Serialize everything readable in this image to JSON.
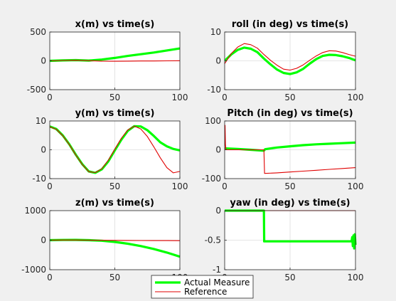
{
  "colors": {
    "actual": "#00ff00",
    "reference": "#e00000",
    "axes_bg": "#ffffff",
    "axes_line": "#262626",
    "grid": "#dcdcdc",
    "figure_bg": "#f0f0f0"
  },
  "legend": {
    "placement": "bottom-center",
    "items": [
      "Actual Measure",
      "Reference"
    ]
  },
  "chart_data": [
    {
      "type": "line",
      "title": "x(m) vs time(s)",
      "xlim": [
        0,
        100
      ],
      "ylim": [
        -500,
        500
      ],
      "grid": true,
      "xticks": [
        "0",
        "50",
        "100"
      ],
      "yticks": [
        "-500",
        "0",
        "500"
      ],
      "series": [
        {
          "name": "Actual Measure",
          "x": [
            0,
            10,
            20,
            30,
            40,
            50,
            60,
            70,
            80,
            90,
            100
          ],
          "y": [
            0,
            8,
            12,
            5,
            22,
            50,
            85,
            115,
            145,
            180,
            215
          ]
        },
        {
          "name": "Reference",
          "x": [
            0,
            10,
            20,
            30,
            40,
            50,
            60,
            70,
            80,
            90,
            100
          ],
          "y": [
            0,
            6,
            10,
            4,
            -5,
            -8,
            -5,
            -3,
            -2,
            0,
            2
          ]
        }
      ]
    },
    {
      "type": "line",
      "title": "roll (in deg) vs time(s)",
      "xlim": [
        0,
        100
      ],
      "ylim": [
        -10,
        10
      ],
      "grid": true,
      "xticks": [
        "0",
        "50",
        "100"
      ],
      "yticks": [
        "-10",
        "0",
        "10"
      ],
      "series": [
        {
          "name": "Actual Measure",
          "x": [
            0,
            5,
            10,
            15,
            20,
            25,
            30,
            35,
            40,
            45,
            50,
            55,
            60,
            65,
            70,
            75,
            80,
            85,
            90,
            95,
            100
          ],
          "y": [
            0,
            2.2,
            3.8,
            4.6,
            4.2,
            3.0,
            0.8,
            -1.2,
            -3.0,
            -4.2,
            -4.6,
            -4.0,
            -2.8,
            -1.0,
            0.6,
            1.7,
            2.1,
            2.0,
            1.6,
            1.0,
            0.2
          ]
        },
        {
          "name": "Reference",
          "x": [
            0,
            5,
            10,
            15,
            20,
            25,
            30,
            35,
            40,
            45,
            50,
            55,
            60,
            65,
            70,
            75,
            80,
            85,
            90,
            95,
            100
          ],
          "y": [
            -1.0,
            2.5,
            4.8,
            6.0,
            5.6,
            4.4,
            2.2,
            0.2,
            -1.5,
            -2.9,
            -3.2,
            -2.6,
            -1.4,
            0.2,
            1.7,
            2.9,
            3.5,
            3.4,
            2.9,
            2.2,
            1.6
          ]
        }
      ]
    },
    {
      "type": "line",
      "title": "y(m) vs time(s)",
      "xlim": [
        0,
        100
      ],
      "ylim": [
        -10,
        10
      ],
      "grid": true,
      "xticks": [
        "0",
        "50",
        "100"
      ],
      "yticks": [
        "-10",
        "0",
        "10"
      ],
      "series": [
        {
          "name": "Actual Measure",
          "x": [
            0,
            5,
            10,
            15,
            20,
            25,
            30,
            35,
            40,
            45,
            50,
            55,
            60,
            65,
            70,
            75,
            80,
            85,
            90,
            95,
            100
          ],
          "y": [
            8.1,
            7.2,
            5.0,
            1.9,
            -1.7,
            -5.0,
            -7.5,
            -8.0,
            -6.8,
            -4.0,
            -0.2,
            3.5,
            6.6,
            8.2,
            8.1,
            6.8,
            4.8,
            2.6,
            1.2,
            0.3,
            -0.2
          ]
        },
        {
          "name": "Reference",
          "x": [
            0,
            5,
            10,
            15,
            20,
            25,
            30,
            35,
            40,
            45,
            50,
            55,
            60,
            65,
            70,
            75,
            80,
            85,
            90,
            95,
            100
          ],
          "y": [
            8.0,
            7.1,
            4.9,
            1.8,
            -1.8,
            -5.1,
            -7.6,
            -7.9,
            -6.6,
            -3.6,
            0.2,
            4.0,
            6.9,
            8.2,
            7.2,
            4.6,
            1.0,
            -2.8,
            -6.2,
            -8.0,
            -7.5
          ]
        }
      ]
    },
    {
      "type": "line",
      "title": "Pitch (in deg) vs time(s)",
      "xlim": [
        0,
        100
      ],
      "ylim": [
        -100,
        100
      ],
      "grid": true,
      "xticks": [
        "0",
        "50",
        "100"
      ],
      "yticks": [
        "-100",
        "0",
        "100"
      ],
      "series": [
        {
          "name": "Actual Measure",
          "x": [
            0,
            10,
            20,
            29,
            30,
            31,
            40,
            50,
            60,
            70,
            80,
            90,
            100
          ],
          "y": [
            5,
            3,
            0,
            -3,
            -3,
            2,
            8,
            12,
            16,
            19,
            21,
            23,
            25
          ]
        },
        {
          "name": "Reference",
          "x": [
            0,
            0.3,
            0.6,
            1,
            29.5,
            30,
            30.5,
            40,
            50,
            60,
            70,
            80,
            90,
            100
          ],
          "y": [
            0,
            85,
            20,
            0,
            0,
            0,
            -82,
            -80,
            -77,
            -74,
            -71,
            -68,
            -65,
            -62
          ]
        }
      ]
    },
    {
      "type": "line",
      "title": "z(m) vs time(s)",
      "xlim": [
        0,
        100
      ],
      "ylim": [
        -1000,
        1000
      ],
      "grid": true,
      "xticks": [
        "0",
        "50",
        "100"
      ],
      "yticks": [
        "-1000",
        "0",
        "1000"
      ],
      "series": [
        {
          "name": "Actual Measure",
          "x": [
            0,
            10,
            20,
            30,
            40,
            50,
            60,
            70,
            80,
            90,
            100
          ],
          "y": [
            0,
            8,
            10,
            0,
            -20,
            -60,
            -120,
            -200,
            -300,
            -420,
            -560
          ]
        },
        {
          "name": "Reference",
          "x": [
            0,
            10,
            20,
            30,
            40,
            50,
            60,
            70,
            80,
            90,
            100
          ],
          "y": [
            0,
            6,
            5,
            0,
            -5,
            -8,
            -10,
            -12,
            -14,
            -15,
            -16
          ]
        }
      ]
    },
    {
      "type": "line",
      "title": "yaw (in deg) vs time(s)",
      "xlim": [
        0,
        100
      ],
      "ylim": [
        -1,
        0
      ],
      "grid": true,
      "xticks": [
        "0",
        "50",
        "100"
      ],
      "yticks": [
        "-1",
        "-0.5",
        "0"
      ],
      "series": [
        {
          "name": "Actual Measure",
          "x": [
            0,
            30,
            30.2,
            97,
            97.5,
            98,
            98.5,
            99,
            99.5,
            100
          ],
          "y": [
            0,
            0,
            -0.52,
            -0.52,
            -0.45,
            -0.6,
            -0.42,
            -0.64,
            -0.4,
            -0.58
          ]
        },
        {
          "name": "Reference",
          "x": [
            0,
            100
          ],
          "y": [
            0,
            0
          ]
        }
      ]
    }
  ]
}
